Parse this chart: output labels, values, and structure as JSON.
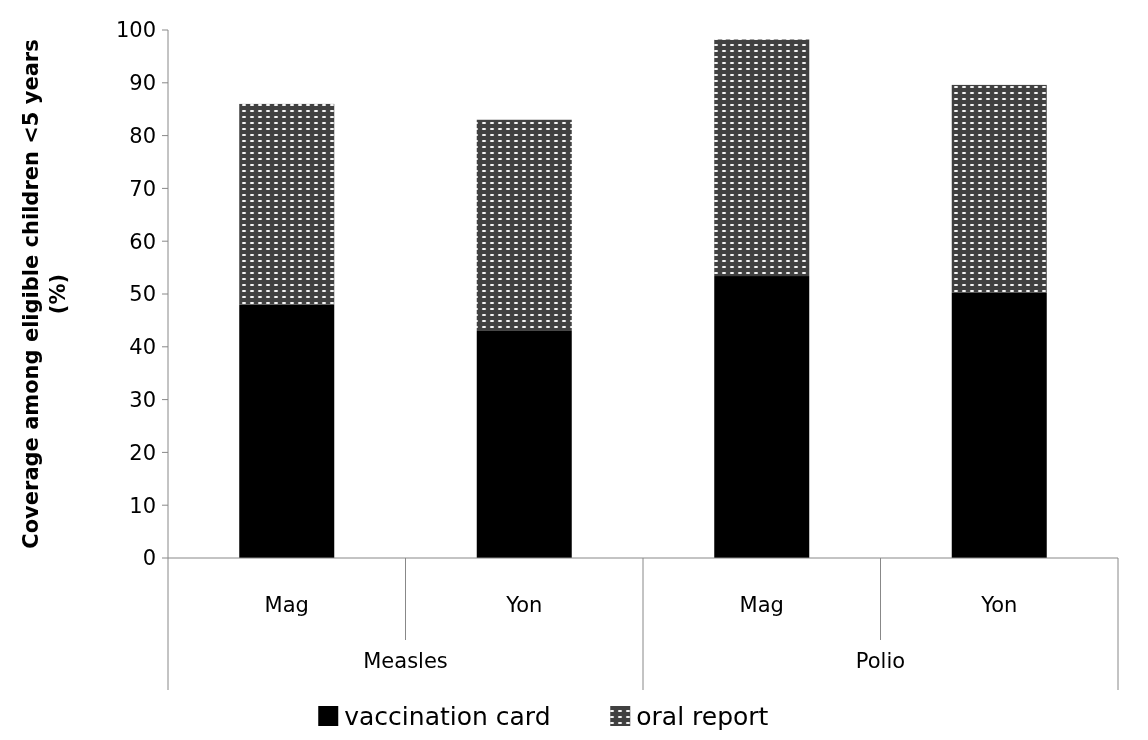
{
  "chart_data": {
    "type": "bar",
    "stacked": true,
    "ylabel": "Coverage among eligible children <5 years (%)",
    "categories": [
      "Mag",
      "Yon",
      "Mag",
      "Yon"
    ],
    "series": [
      {
        "name": "vaccination card",
        "color": "#000000",
        "values": [
          48,
          43,
          53.4,
          50.3
        ]
      },
      {
        "name": "oral report",
        "color": "#404040",
        "values": [
          38,
          40,
          44.8,
          39.3
        ]
      }
    ],
    "ylim": [
      0,
      100
    ],
    "yticks": [
      0,
      10,
      20,
      30,
      40,
      50,
      60,
      70,
      80,
      90,
      100
    ],
    "grid": false,
    "legend": "bottom",
    "annotations": [
      "Measles",
      "Polio"
    ]
  }
}
